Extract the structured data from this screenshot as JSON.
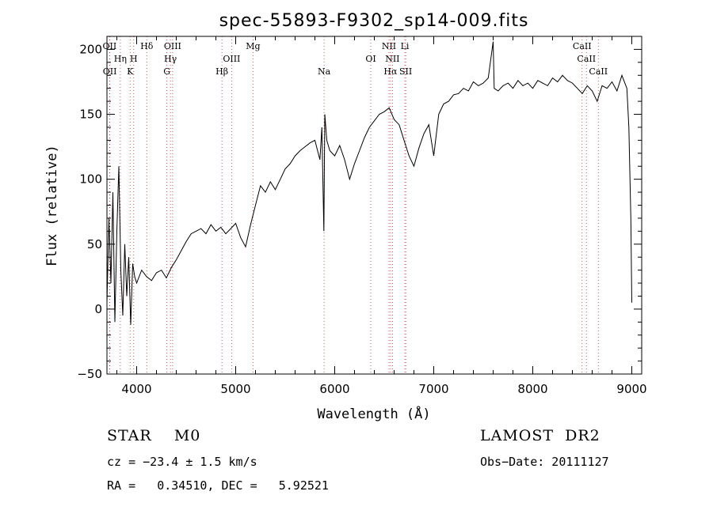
{
  "chart_data": {
    "type": "line",
    "title": "spec-55893-F9302_sp14-009.fits",
    "xlabel": "Wavelength (Å)",
    "ylabel": "Flux (relative)",
    "xlim": [
      3700,
      9100
    ],
    "ylim": [
      -50,
      210
    ],
    "xticks": [
      4000,
      5000,
      6000,
      7000,
      8000,
      9000
    ],
    "yticks": [
      -50,
      0,
      50,
      100,
      150,
      200
    ],
    "grid": false,
    "series": [
      {
        "color": "#000000",
        "x": [
          3700,
          3720,
          3740,
          3760,
          3780,
          3800,
          3820,
          3840,
          3860,
          3880,
          3900,
          3920,
          3940,
          3960,
          3980,
          4000,
          4050,
          4100,
          4150,
          4200,
          4250,
          4300,
          4350,
          4400,
          4450,
          4500,
          4550,
          4600,
          4650,
          4700,
          4750,
          4800,
          4850,
          4900,
          4950,
          5000,
          5050,
          5100,
          5150,
          5200,
          5250,
          5300,
          5350,
          5400,
          5450,
          5500,
          5550,
          5600,
          5650,
          5700,
          5750,
          5800,
          5850,
          5870,
          5890,
          5900,
          5920,
          5950,
          6000,
          6050,
          6100,
          6150,
          6200,
          6250,
          6300,
          6350,
          6400,
          6450,
          6500,
          6550,
          6600,
          6650,
          6700,
          6750,
          6800,
          6850,
          6900,
          6950,
          7000,
          7050,
          7100,
          7150,
          7200,
          7250,
          7300,
          7350,
          7400,
          7450,
          7500,
          7550,
          7600,
          7610,
          7650,
          7700,
          7750,
          7800,
          7850,
          7900,
          7950,
          8000,
          8050,
          8100,
          8150,
          8200,
          8250,
          8300,
          8350,
          8400,
          8450,
          8500,
          8550,
          8600,
          8650,
          8700,
          8750,
          8800,
          8850,
          8900,
          8950,
          8970,
          8990,
          9000
        ],
        "y": [
          5,
          70,
          20,
          90,
          -10,
          60,
          110,
          30,
          -5,
          50,
          10,
          40,
          -12,
          35,
          25,
          20,
          30,
          25,
          22,
          28,
          30,
          24,
          32,
          38,
          45,
          52,
          58,
          60,
          62,
          58,
          65,
          60,
          63,
          58,
          62,
          66,
          55,
          48,
          65,
          80,
          95,
          90,
          98,
          92,
          100,
          108,
          112,
          118,
          122,
          125,
          128,
          130,
          115,
          140,
          60,
          150,
          130,
          122,
          118,
          126,
          115,
          100,
          112,
          122,
          132,
          140,
          145,
          150,
          152,
          155,
          146,
          142,
          130,
          118,
          110,
          124,
          135,
          142,
          118,
          150,
          158,
          160,
          165,
          166,
          170,
          168,
          175,
          172,
          174,
          178,
          206,
          170,
          168,
          172,
          174,
          170,
          176,
          172,
          174,
          170,
          176,
          174,
          172,
          178,
          175,
          180,
          176,
          174,
          170,
          166,
          172,
          168,
          160,
          172,
          170,
          175,
          168,
          180,
          170,
          140,
          70,
          5
        ]
      }
    ],
    "lines": [
      {
        "label": "OII",
        "x": 3727
      },
      {
        "label": "Hη",
        "x": 3835
      },
      {
        "label": "OII",
        "x": 3729
      },
      {
        "label": "H",
        "x": 3970
      },
      {
        "label": "K",
        "x": 3934
      },
      {
        "label": "Hδ",
        "x": 4102
      },
      {
        "label": "OIII",
        "x": 4363
      },
      {
        "label": "Hγ",
        "x": 4341
      },
      {
        "label": "G",
        "x": 4305
      },
      {
        "label": "Hβ",
        "x": 4861
      },
      {
        "label": "OIII",
        "x": 4959
      },
      {
        "label": "Mg",
        "x": 5175
      },
      {
        "label": "Na",
        "x": 5893
      },
      {
        "label": "OI",
        "x": 6364
      },
      {
        "label": "NII",
        "x": 6548
      },
      {
        "label": "NII",
        "x": 6583
      },
      {
        "label": "Hα",
        "x": 6563
      },
      {
        "label": "Li",
        "x": 6708
      },
      {
        "label": "SII",
        "x": 6717
      },
      {
        "label": "CaII",
        "x": 8498
      },
      {
        "label": "CaII",
        "x": 8542
      },
      {
        "label": "CaII",
        "x": 8662
      }
    ]
  },
  "info": {
    "class_label": "STAR    M0",
    "survey": "LAMOST  DR2",
    "cz": "cz = −23.4 ± 1.5 km/s",
    "obs_date": "Obs−Date: 20111127",
    "coords": "RA =   0.34510, DEC =   5.92521"
  }
}
